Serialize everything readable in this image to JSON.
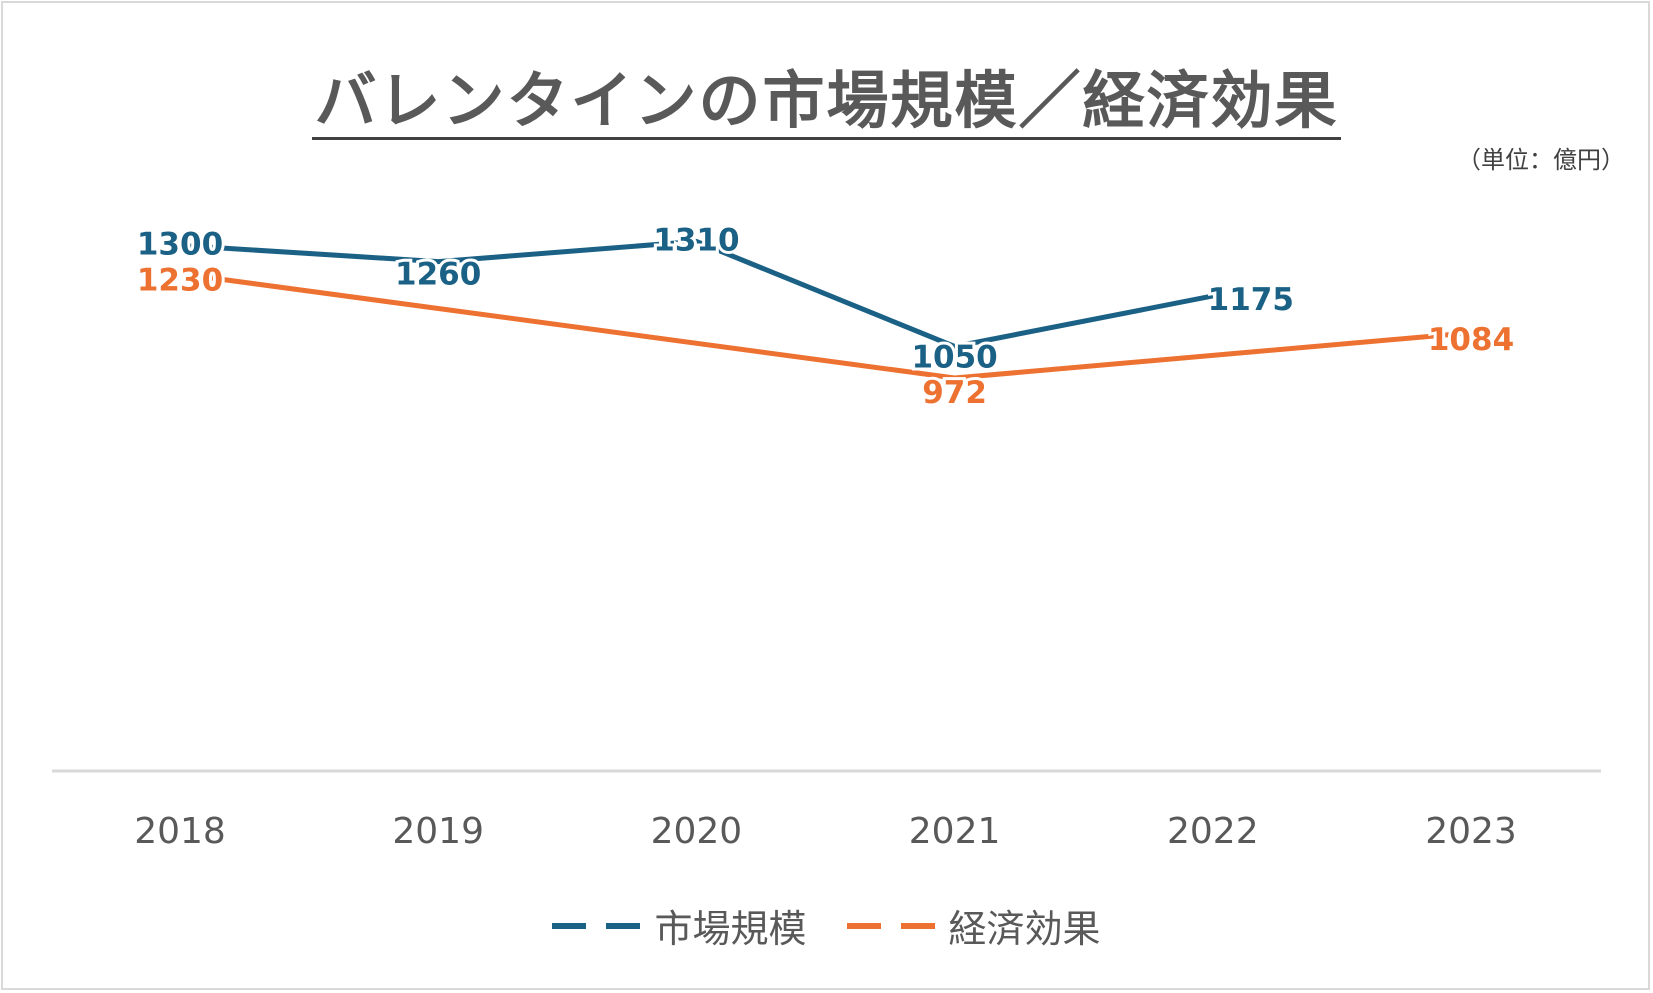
{
  "chart_data": {
    "type": "line",
    "title": "バレンタインの市場規模／経済効果",
    "unit_note": "（単位：億円）",
    "categories": [
      "2018",
      "2019",
      "2020",
      "2021",
      "2022",
      "2023"
    ],
    "series": [
      {
        "name": "市場規模",
        "color": "#1b6185",
        "values": [
          1300,
          1260,
          1310,
          1050,
          1175,
          null
        ]
      },
      {
        "name": "経済効果",
        "color": "#ed7131",
        "values": [
          1230,
          null,
          null,
          972,
          null,
          1084
        ]
      }
    ],
    "ylim": [
      0,
      1400
    ],
    "grid": false,
    "legend": "bottom",
    "data_labels": true
  }
}
